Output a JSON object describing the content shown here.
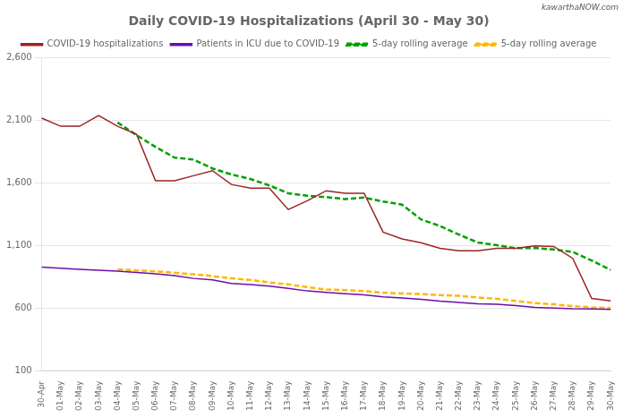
{
  "chart_data": {
    "type": "line",
    "title": "Daily COVID-19 Hospitalizations (April 30 - May 30)",
    "annotations": [
      "kawarthaNOW.com"
    ],
    "categories": [
      "30-Apr",
      "01-May",
      "02-May",
      "03-May",
      "04-May",
      "05-May",
      "06-May",
      "07-May",
      "08-May",
      "09-May",
      "10-May",
      "11-May",
      "12-May",
      "13-May",
      "14-May",
      "15-May",
      "16-May",
      "17-May",
      "18-May",
      "19-May",
      "20-May",
      "21-May",
      "22-May",
      "23-May",
      "24-May",
      "25-May",
      "26-May",
      "27-May",
      "28-May",
      "29-May",
      "30-May"
    ],
    "series": [
      {
        "name": "COVID-19 hospitalizations",
        "color": "#9B2323",
        "line_style": "solid",
        "values": [
          2120,
          2055,
          2055,
          2140,
          2055,
          1990,
          1620,
          1620,
          1660,
          1700,
          1590,
          1560,
          1560,
          1390,
          1460,
          1540,
          1520,
          1520,
          1210,
          1155,
          1125,
          1080,
          1060,
          1060,
          1080,
          1080,
          1100,
          1095,
          1000,
          680,
          660
        ]
      },
      {
        "name": "Patients in ICU due to COVID-19",
        "color": "#6A0DAD",
        "line_style": "solid",
        "values": [
          930,
          922,
          912,
          905,
          898,
          887,
          876,
          863,
          840,
          828,
          800,
          790,
          778,
          760,
          740,
          728,
          718,
          708,
          693,
          683,
          673,
          658,
          648,
          638,
          633,
          623,
          608,
          603,
          598,
          597,
          593
        ]
      },
      {
        "name": "5-day rolling average",
        "color": "#00A000",
        "line_style": "dashed",
        "values": [
          null,
          null,
          null,
          null,
          2085,
          1984,
          1890,
          1805,
          1789,
          1718,
          1670,
          1634,
          1582,
          1520,
          1500,
          1489,
          1474,
          1485,
          1454,
          1429,
          1311,
          1259,
          1190,
          1126,
          1105,
          1081,
          1083,
          1071,
          1051,
          983,
          907
        ]
      },
      {
        "name": "5-day rolling average",
        "color": "#FFB700",
        "line_style": "dashed",
        "values": [
          null,
          null,
          null,
          null,
          913,
          904,
          896,
          886,
          873,
          859,
          841,
          828,
          808,
          792,
          771,
          751,
          747,
          738,
          726,
          720,
          715,
          707,
          701,
          688,
          677,
          660,
          643,
          633,
          619,
          609,
          604
        ]
      }
    ],
    "ylim": [
      100,
      2600
    ],
    "yticks": [
      100,
      600,
      {
        "value": 1100,
        "label": "1,100"
      },
      {
        "value": 1600,
        "label": "1,600"
      },
      {
        "value": 2100,
        "label": "2,100"
      },
      {
        "value": 2600,
        "label": "2,600"
      }
    ],
    "grid": "y",
    "legend": "top"
  }
}
